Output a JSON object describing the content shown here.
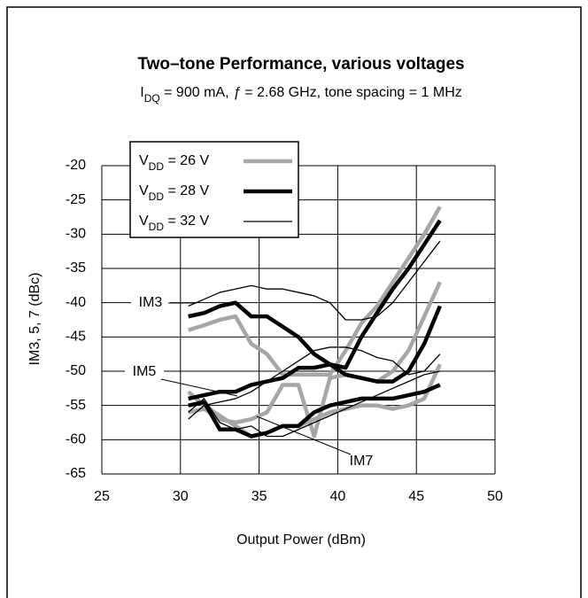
{
  "chart_data": {
    "type": "line",
    "title": "Two–tone Performance, various voltages",
    "subtitle": [
      "I",
      "DQ",
      " = 900 mA, ",
      "ƒ",
      " = 2.68 GHz, tone spacing = 1 MHz"
    ],
    "x_label": "Output Power (dBm)",
    "y_label": "IM3, 5, 7 (dBc)",
    "xlim": [
      25,
      50
    ],
    "xticks": [
      25,
      30,
      35,
      40,
      45,
      50
    ],
    "ylim": [
      -65,
      -20
    ],
    "yticks": [
      -20,
      -25,
      -30,
      -35,
      -40,
      -45,
      -50,
      -55,
      -60,
      -65
    ],
    "grid": true,
    "legend": "upper left",
    "annotations": [
      "IM3",
      "IM5",
      "IM7"
    ],
    "x": [
      30.5,
      31.5,
      32.5,
      33.5,
      34.5,
      35.5,
      36.5,
      37.5,
      38.5,
      39.5,
      40.5,
      41.5,
      42.5,
      43.5,
      44.5,
      45.5,
      46.5
    ],
    "series": [
      {
        "name": [
          "V",
          "DD",
          " = 26 V"
        ],
        "color": "#a6a6a6",
        "style": "thick",
        "curves": [
          {
            "values": [
              -44,
              -43.3,
              -42.5,
              -42,
              -46,
              -47.5,
              -50.5,
              -50.5,
              -50.5,
              -50.5,
              -47,
              -43,
              -40.5,
              -37,
              -33.5,
              -30,
              -26
            ]
          },
          {
            "values": [
              -56,
              -55.5,
              -57,
              -57.5,
              -57,
              -56,
              -52,
              -52,
              -59.5,
              -51,
              -50.5,
              -51,
              -51.5,
              -50,
              -47,
              -42,
              -37
            ]
          },
          {
            "values": [
              -53,
              -55,
              -56.5,
              -58,
              -59.5,
              -59,
              -58,
              -58,
              -57,
              -56,
              -55.5,
              -55,
              -55,
              -55.5,
              -55,
              -54,
              -49
            ]
          }
        ]
      },
      {
        "name": [
          "V",
          "DD",
          " = 28 V"
        ],
        "color": "#000000",
        "style": "thick",
        "curves": [
          {
            "values": [
              -42,
              -41.5,
              -40.5,
              -40,
              -42,
              -42,
              -43.5,
              -45,
              -47.5,
              -49,
              -49.5,
              -45,
              -41.5,
              -38,
              -35,
              -31.5,
              -28
            ]
          },
          {
            "values": [
              -54,
              -53.5,
              -53,
              -53,
              -52,
              -51.5,
              -51,
              -49.5,
              -49.5,
              -49,
              -50.5,
              -51,
              -51.5,
              -51.5,
              -50,
              -46,
              -40.5
            ]
          },
          {
            "values": [
              -55,
              -54.5,
              -58.5,
              -58.5,
              -59.5,
              -59,
              -58,
              -58,
              -56,
              -55,
              -54.5,
              -54,
              -54,
              -54,
              -53.5,
              -53,
              -52
            ]
          }
        ]
      },
      {
        "name": [
          "V",
          "DD",
          " = 32 V"
        ],
        "color": "#000000",
        "style": "thin",
        "curves": [
          {
            "values": [
              -40.5,
              -39.5,
              -38.5,
              -38,
              -37.5,
              -38,
              -38,
              -38.5,
              -39,
              -40,
              -42.5,
              -42.5,
              -42,
              -40,
              -37,
              -34,
              -31
            ]
          },
          {
            "values": [
              -57,
              -55,
              -54.5,
              -54,
              -53,
              -51.5,
              -50,
              -48.5,
              -47,
              -46.5,
              -46.5,
              -47,
              -48,
              -48.5,
              -50.5,
              -50,
              -47.5
            ]
          },
          {
            "values": [
              -56,
              -54,
              -57.5,
              -58.5,
              -58,
              -59.5,
              -59.5,
              -58.5,
              -57.5,
              -56.5,
              -55.5,
              -54.5,
              -53.5,
              -52.5,
              -51.5,
              -50.5,
              -50
            ]
          }
        ]
      }
    ]
  }
}
